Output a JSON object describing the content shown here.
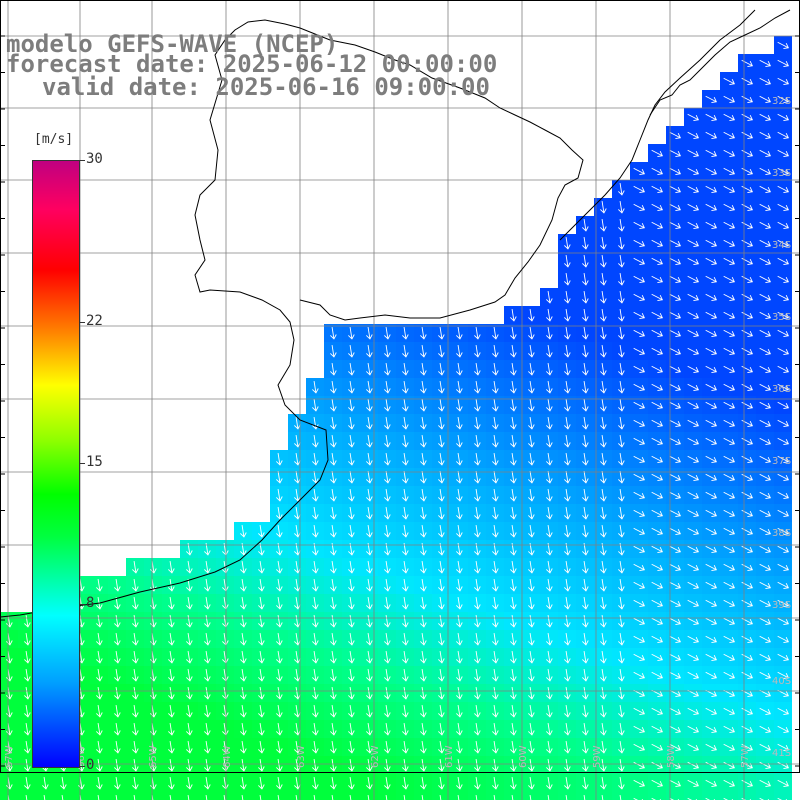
{
  "title": {
    "line1": "modelo GEFS-WAVE (NCEP)",
    "line2": "forecast date: 2025-06-12 00:00:00",
    "line3": "valid date: 2025-06-16 09:00:00"
  },
  "colorbar": {
    "unit": "[m/s]",
    "min": 0,
    "max": 30,
    "ticks": [
      {
        "label": "30",
        "value": 30
      },
      {
        "label": "22",
        "value": 22
      },
      {
        "label": "15",
        "value": 15
      },
      {
        "label": "8",
        "value": 8
      },
      {
        "label": "0",
        "value": 0
      }
    ]
  },
  "map": {
    "lat_labels": [
      "32S",
      "33S",
      "34S",
      "35S",
      "36S",
      "37S",
      "38S",
      "39S",
      "40S",
      "41S"
    ],
    "lon_labels": [
      "67W",
      "66W",
      "65W",
      "64W",
      "63W",
      "62W",
      "61W",
      "60W",
      "59W",
      "58W",
      "57W"
    ],
    "colors": {
      "land": "#ffffff",
      "grid": "#808080",
      "coast": "#000000",
      "arrow": "#ffffff"
    }
  }
}
